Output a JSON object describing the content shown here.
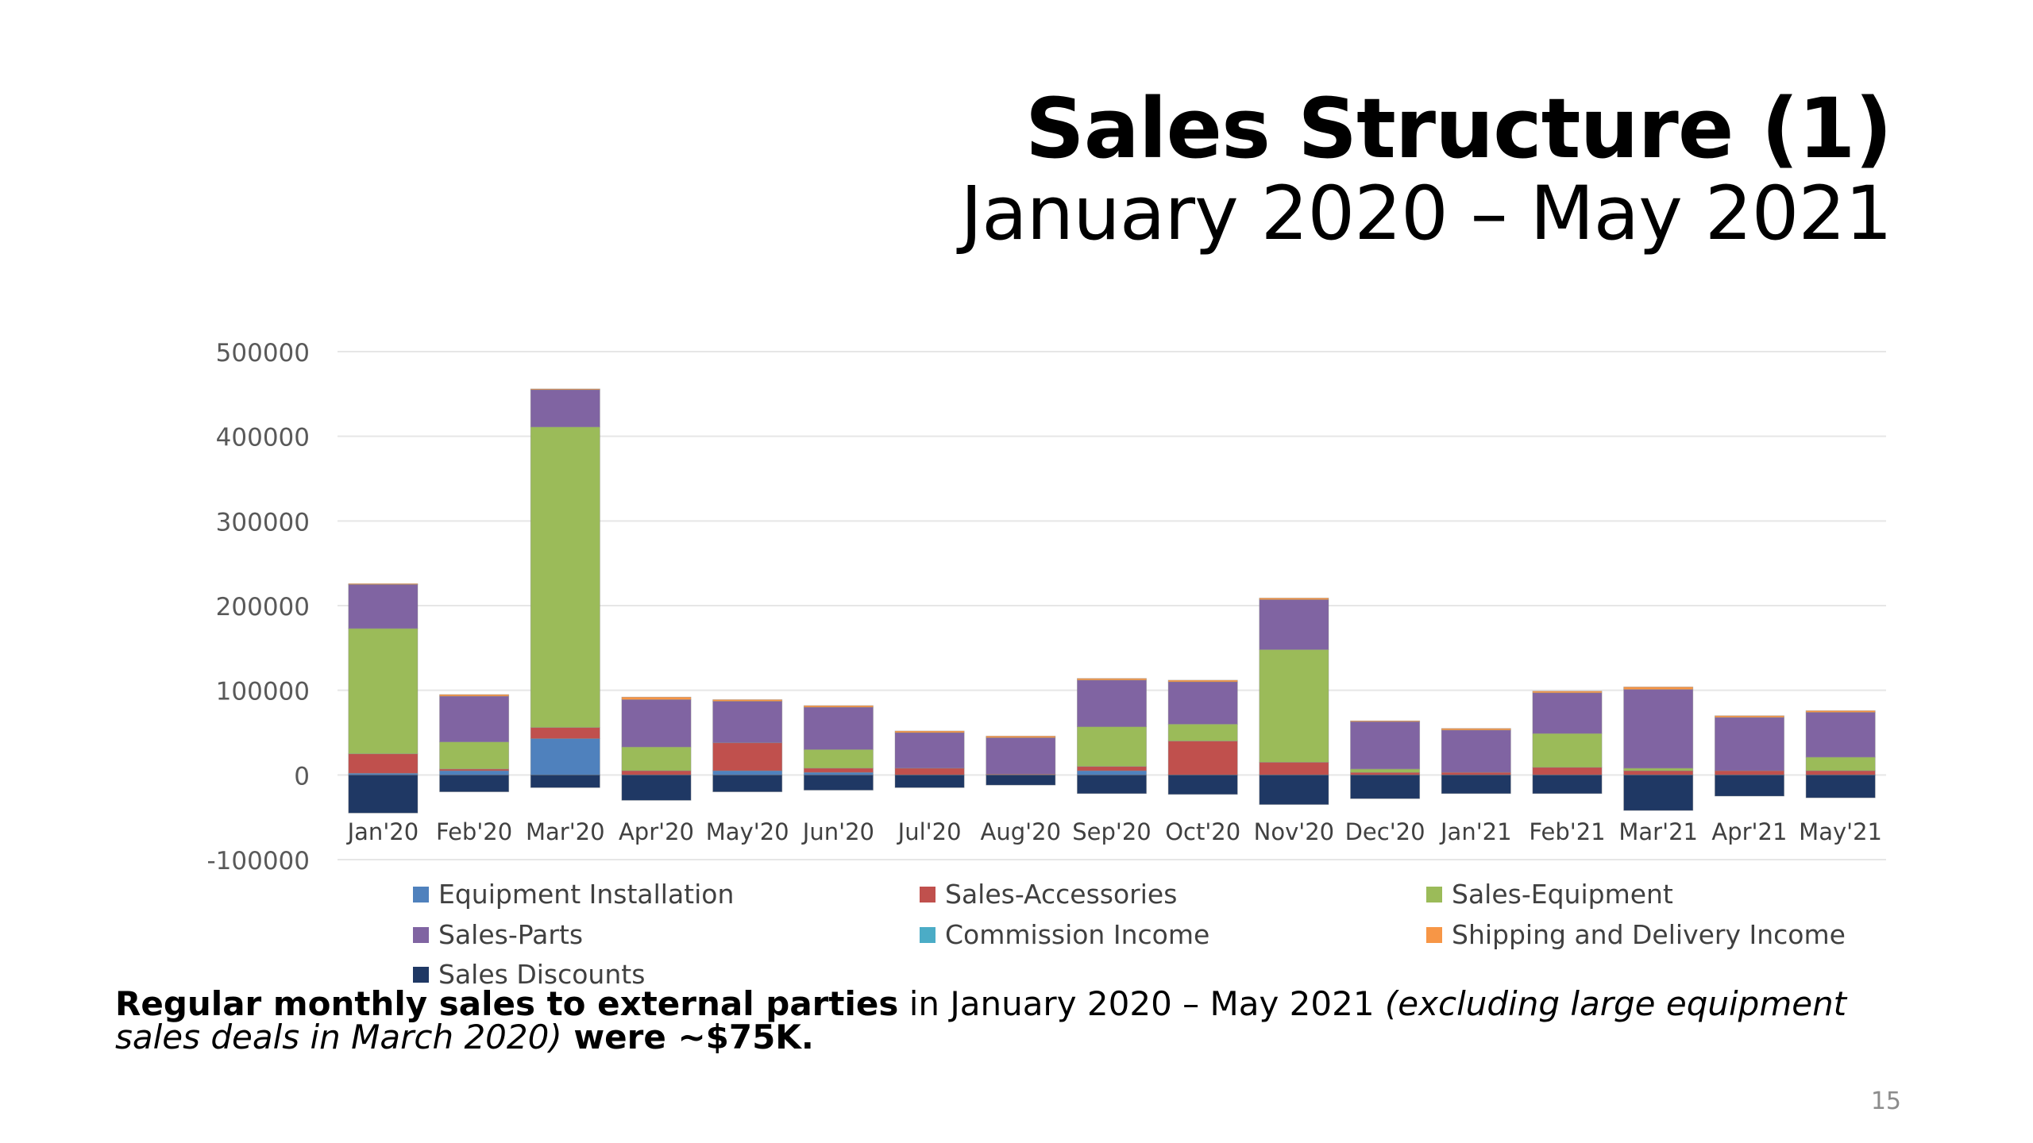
{
  "slide": {
    "title": "Sales Structure (1)",
    "subtitle": "January 2020 – May 2021",
    "page_number": "15",
    "note": {
      "part1_bold": "Regular monthly sales to external parties",
      "part2": " in January 2020 – May 2021 ",
      "part3_italic": "(excluding large equipment sales deals in March 2020)",
      "part4_bold": " were ~$75K."
    }
  },
  "chart_data": {
    "type": "bar",
    "stacked": true,
    "title": "",
    "xlabel": "",
    "ylabel": "",
    "ylim": [
      -100000,
      500000
    ],
    "yticks": [
      "500000",
      "400000",
      "300000",
      "200000",
      "100000",
      "0",
      "-100000"
    ],
    "grid": true,
    "legend_position": "bottom",
    "categories": [
      "Jan'20",
      "Feb'20",
      "Mar'20",
      "Apr'20",
      "May'20",
      "Jun'20",
      "Jul'20",
      "Aug'20",
      "Sep'20",
      "Oct'20",
      "Nov'20",
      "Dec'20",
      "Jan'21",
      "Feb'21",
      "Mar'21",
      "Apr'21",
      "May'21"
    ],
    "series": [
      {
        "name": "Equipment Installation",
        "color": "#4f81bd",
        "values": [
          2000,
          5000,
          43000,
          0,
          5000,
          3000,
          0,
          0,
          5000,
          0,
          0,
          0,
          0,
          0,
          0,
          0,
          0
        ]
      },
      {
        "name": "Sales-Accessories",
        "color": "#c0504d",
        "values": [
          23000,
          2000,
          13000,
          5000,
          33000,
          5000,
          8000,
          1000,
          5000,
          40000,
          15000,
          3000,
          3000,
          9000,
          5000,
          5000,
          5000
        ]
      },
      {
        "name": "Sales-Equipment",
        "color": "#9bbb59",
        "values": [
          148000,
          32000,
          355000,
          28000,
          0,
          22000,
          0,
          0,
          47000,
          20000,
          133000,
          4000,
          0,
          40000,
          3000,
          0,
          16000
        ]
      },
      {
        "name": "Sales-Parts",
        "color": "#8064a2",
        "values": [
          52000,
          54000,
          44000,
          56000,
          49000,
          50000,
          42000,
          43000,
          55000,
          50000,
          59000,
          56000,
          50000,
          48000,
          93000,
          63000,
          53000
        ]
      },
      {
        "name": "Commission Income",
        "color": "#4bacc6",
        "values": [
          0,
          0,
          0,
          0,
          0,
          0,
          0,
          0,
          0,
          0,
          0,
          0,
          0,
          0,
          0,
          0,
          0
        ]
      },
      {
        "name": "Shipping and Delivery Income",
        "color": "#f79646",
        "values": [
          1000,
          2000,
          1000,
          3000,
          2000,
          2000,
          2000,
          2000,
          2000,
          2000,
          2000,
          1000,
          2000,
          2000,
          3000,
          2000,
          2000
        ]
      },
      {
        "name": "Sales Discounts",
        "color": "#1f3864",
        "values": [
          -45000,
          -20000,
          -15000,
          -30000,
          -20000,
          -18000,
          -15000,
          -12000,
          -22000,
          -23000,
          -35000,
          -28000,
          -22000,
          -22000,
          -42000,
          -25000,
          -27000
        ]
      }
    ]
  }
}
